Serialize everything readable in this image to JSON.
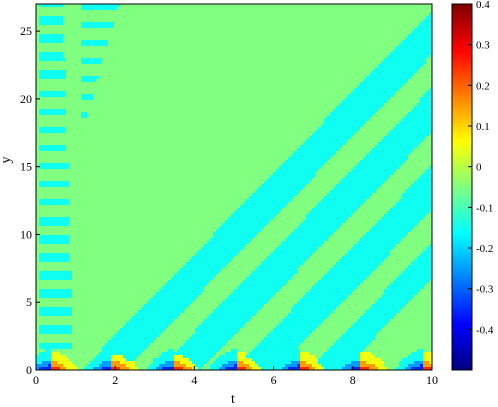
{
  "chart_data": {
    "type": "heatmap",
    "subtype": "filled-contour",
    "xlabel": "t",
    "ylabel": "y",
    "xlim": [
      0,
      10
    ],
    "ylim": [
      0,
      27
    ],
    "xticks": [
      "0",
      "2",
      "4",
      "6",
      "8",
      "10"
    ],
    "yticks": [
      "0",
      "5",
      "10",
      "15",
      "20",
      "25"
    ],
    "colorbar": {
      "colormap": "jet",
      "range": [
        -0.5,
        0.4
      ],
      "ticks": [
        "-0.4",
        "-0.3",
        "-0.2",
        "-0.1",
        "0",
        "0.1",
        "0.2",
        "0.3",
        "0.4"
      ]
    },
    "contour_levels": [
      -0.5,
      -0.4,
      -0.3,
      -0.2,
      -0.1,
      0,
      0.1,
      0.2,
      0.3,
      0.4
    ],
    "background_value": -0.05,
    "diagonal_band_value": -0.15,
    "wave_packets_near_y0": {
      "period_t": 1.57,
      "centers_t": [
        0.35,
        1.92,
        3.49,
        5.06,
        6.63,
        8.2,
        9.77
      ],
      "min_value": -0.45,
      "max_value": 0.35
    },
    "grid": false
  }
}
